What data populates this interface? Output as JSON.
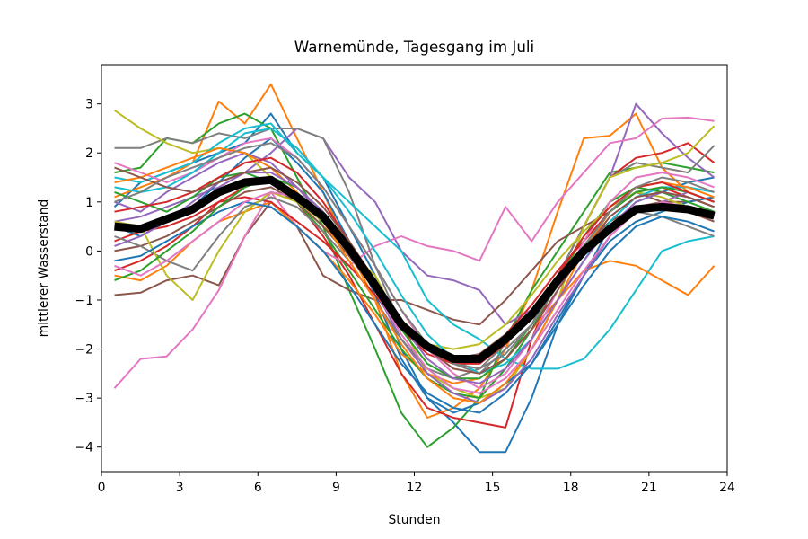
{
  "chart_data": {
    "type": "line",
    "title": "Warnemünde, Tagesgang im Juli",
    "xlabel": "Stunden",
    "ylabel": "mittlerer Wasserstand",
    "xlim": [
      0,
      24
    ],
    "ylim": [
      -4.5,
      3.8
    ],
    "xticks": [
      0,
      3,
      6,
      9,
      12,
      15,
      18,
      21,
      24
    ],
    "yticks": [
      -4,
      -3,
      -2,
      -1,
      0,
      1,
      2,
      3
    ],
    "grid": false,
    "legend": "none",
    "x": [
      0.5,
      1.5,
      2.5,
      3.5,
      4.5,
      5.5,
      6.5,
      7.5,
      8.5,
      9.5,
      10.5,
      11.5,
      12.5,
      13.5,
      14.5,
      15.5,
      16.5,
      17.5,
      18.5,
      19.5,
      20.5,
      21.5,
      22.5,
      23.5
    ],
    "palette": [
      "#1f77b4",
      "#ff7f0e",
      "#2ca02c",
      "#d62728",
      "#9467bd",
      "#8c564b",
      "#e377c2",
      "#7f7f7f",
      "#bcbd22",
      "#17becf"
    ],
    "mean_series": {
      "color": "#000000",
      "values": [
        0.5,
        0.45,
        0.65,
        0.85,
        1.2,
        1.4,
        1.45,
        1.1,
        0.7,
        0.05,
        -0.7,
        -1.5,
        -1.95,
        -2.2,
        -2.2,
        -1.8,
        -1.3,
        -0.6,
        0.0,
        0.45,
        0.85,
        0.9,
        0.85,
        0.72
      ]
    },
    "series": [
      {
        "color": "#1f77b4",
        "values": [
          0.9,
          1.4,
          1.6,
          1.8,
          2.0,
          2.2,
          2.8,
          2.0,
          1.5,
          0.5,
          -0.5,
          -2.0,
          -3.0,
          -3.5,
          -4.1,
          -4.1,
          -3.0,
          -1.5,
          -0.5,
          0.5,
          1.0,
          1.2,
          1.4,
          1.5
        ]
      },
      {
        "color": "#ff7f0e",
        "values": [
          1.1,
          1.3,
          1.5,
          1.8,
          3.05,
          2.6,
          3.4,
          2.3,
          1.2,
          0.0,
          -1.0,
          -2.5,
          -3.4,
          -3.2,
          -2.8,
          -2.0,
          -0.8,
          0.8,
          2.3,
          2.35,
          2.8,
          1.7,
          1.2,
          1.0
        ]
      },
      {
        "color": "#2ca02c",
        "values": [
          1.6,
          1.7,
          2.3,
          2.2,
          2.6,
          2.8,
          2.5,
          1.5,
          0.5,
          -0.8,
          -2.0,
          -3.3,
          -4.0,
          -3.6,
          -3.0,
          -1.8,
          -0.8,
          0.0,
          0.8,
          1.6,
          1.7,
          1.8,
          1.7,
          1.6
        ]
      },
      {
        "color": "#d62728",
        "values": [
          -0.4,
          -0.2,
          0.1,
          0.5,
          1.0,
          1.3,
          1.5,
          1.0,
          0.3,
          -0.5,
          -1.5,
          -2.5,
          -3.2,
          -3.4,
          -3.5,
          -3.6,
          -1.8,
          -0.5,
          0.5,
          1.5,
          1.9,
          2.0,
          2.2,
          1.8
        ]
      },
      {
        "color": "#9467bd",
        "values": [
          0.6,
          0.7,
          0.9,
          1.1,
          1.3,
          1.6,
          2.0,
          2.5,
          2.3,
          1.5,
          1.0,
          0.0,
          -0.5,
          -0.6,
          -0.8,
          -1.5,
          -1.2,
          -0.5,
          0.5,
          1.5,
          3.0,
          2.4,
          1.9,
          1.5
        ]
      },
      {
        "color": "#8c564b",
        "values": [
          -0.9,
          -0.85,
          -0.6,
          -0.5,
          -0.7,
          0.3,
          1.0,
          0.5,
          -0.5,
          -0.8,
          -1.0,
          -1.0,
          -1.2,
          -1.4,
          -1.5,
          -1.0,
          -0.4,
          0.2,
          0.5,
          0.8,
          1.2,
          1.0,
          1.0,
          1.1
        ]
      },
      {
        "color": "#e377c2",
        "values": [
          -2.8,
          -2.2,
          -2.15,
          -1.6,
          -0.8,
          0.3,
          1.2,
          0.5,
          0.0,
          -0.3,
          0.1,
          0.3,
          0.1,
          0.0,
          -0.2,
          0.9,
          0.2,
          1.0,
          1.6,
          2.2,
          2.3,
          2.7,
          2.72,
          2.65
        ]
      },
      {
        "color": "#7f7f7f",
        "values": [
          2.1,
          2.1,
          2.3,
          2.2,
          2.4,
          2.3,
          2.5,
          2.5,
          2.3,
          1.2,
          -0.3,
          -1.5,
          -2.0,
          -2.3,
          -2.5,
          -2.0,
          -1.5,
          -0.5,
          0.5,
          1.5,
          1.8,
          1.7,
          1.6,
          2.15
        ]
      },
      {
        "color": "#bcbd22",
        "values": [
          2.87,
          2.5,
          2.2,
          2.0,
          2.1,
          2.0,
          1.5,
          1.0,
          0.5,
          0.0,
          -0.5,
          -1.5,
          -2.5,
          -2.8,
          -3.0,
          -2.8,
          -2.0,
          -1.0,
          0.5,
          1.5,
          1.7,
          1.8,
          2.0,
          2.55
        ]
      },
      {
        "color": "#17becf",
        "values": [
          1.5,
          1.4,
          1.6,
          1.8,
          2.2,
          2.5,
          2.6,
          2.0,
          1.5,
          1.0,
          0.5,
          0.0,
          -1.0,
          -1.5,
          -1.8,
          -2.2,
          -2.4,
          -2.4,
          -2.2,
          -1.6,
          -0.8,
          0.0,
          0.2,
          0.3
        ]
      },
      {
        "color": "#1f77b4",
        "values": [
          0.5,
          0.3,
          0.6,
          0.9,
          1.4,
          1.9,
          2.3,
          1.8,
          1.2,
          0.2,
          -0.9,
          -2.2,
          -3.0,
          -3.3,
          -3.1,
          -2.7,
          -2.3,
          -1.4,
          -0.5,
          0.2,
          0.6,
          0.8,
          1.0,
          1.1
        ]
      },
      {
        "color": "#ff7f0e",
        "values": [
          -0.5,
          -0.6,
          -0.3,
          0.2,
          0.6,
          0.8,
          1.0,
          0.5,
          0.0,
          -0.6,
          -1.3,
          -2.1,
          -2.5,
          -2.7,
          -2.6,
          -2.2,
          -1.6,
          -1.0,
          -0.4,
          -0.2,
          -0.3,
          -0.6,
          -0.9,
          -0.3
        ]
      },
      {
        "color": "#2ca02c",
        "values": [
          1.2,
          1.0,
          0.8,
          1.1,
          1.5,
          1.6,
          1.4,
          1.0,
          0.4,
          -0.4,
          -1.2,
          -2.0,
          -2.6,
          -2.9,
          -3.0,
          -2.4,
          -1.6,
          -0.6,
          0.3,
          1.0,
          1.3,
          1.2,
          1.0,
          0.8
        ]
      },
      {
        "color": "#d62728",
        "values": [
          0.2,
          0.4,
          0.5,
          0.7,
          1.0,
          1.1,
          1.0,
          0.6,
          0.2,
          -0.3,
          -0.9,
          -1.6,
          -2.1,
          -2.3,
          -2.2,
          -1.7,
          -1.1,
          -0.4,
          0.2,
          0.8,
          1.2,
          1.3,
          1.1,
          0.9
        ]
      },
      {
        "color": "#9467bd",
        "values": [
          1.0,
          0.8,
          1.2,
          1.5,
          1.8,
          2.0,
          1.8,
          1.3,
          0.7,
          0.0,
          -0.8,
          -1.8,
          -2.5,
          -2.9,
          -3.1,
          -2.8,
          -2.2,
          -1.3,
          -0.5,
          0.3,
          0.8,
          1.0,
          1.2,
          1.0
        ]
      },
      {
        "color": "#8c564b",
        "values": [
          0.0,
          0.1,
          0.3,
          0.6,
          0.9,
          1.2,
          1.3,
          1.0,
          0.5,
          -0.1,
          -0.8,
          -1.5,
          -2.0,
          -2.2,
          -2.1,
          -1.7,
          -1.2,
          -0.5,
          0.1,
          0.6,
          0.9,
          1.0,
          0.8,
          0.6
        ]
      },
      {
        "color": "#e377c2",
        "values": [
          1.8,
          1.6,
          1.4,
          1.6,
          1.9,
          2.2,
          2.3,
          1.9,
          1.3,
          0.5,
          -0.3,
          -1.2,
          -2.0,
          -2.5,
          -2.8,
          -2.5,
          -1.8,
          -0.8,
          0.2,
          1.0,
          1.5,
          1.6,
          1.5,
          1.3
        ]
      },
      {
        "color": "#7f7f7f",
        "values": [
          0.3,
          0.1,
          -0.2,
          -0.4,
          0.3,
          0.9,
          1.1,
          0.9,
          0.4,
          -0.2,
          -1.0,
          -1.8,
          -2.4,
          -2.6,
          -2.4,
          -1.9,
          -1.3,
          -0.6,
          0.0,
          0.5,
          0.8,
          0.7,
          0.5,
          0.3
        ]
      },
      {
        "color": "#bcbd22",
        "values": [
          0.6,
          0.5,
          -0.5,
          -1.0,
          0.0,
          0.8,
          1.2,
          1.0,
          0.6,
          0.0,
          -0.7,
          -1.4,
          -1.9,
          -2.0,
          -1.9,
          -1.5,
          -0.9,
          -0.2,
          0.4,
          0.9,
          1.2,
          1.1,
          0.9,
          0.7
        ]
      },
      {
        "color": "#17becf",
        "values": [
          1.3,
          1.2,
          1.3,
          1.6,
          2.0,
          2.4,
          2.5,
          2.1,
          1.5,
          0.8,
          0.0,
          -0.9,
          -1.7,
          -2.2,
          -2.5,
          -2.3,
          -1.8,
          -1.0,
          -0.2,
          0.6,
          1.1,
          1.3,
          1.3,
          1.2
        ]
      },
      {
        "color": "#1f77b4",
        "values": [
          -0.2,
          -0.1,
          0.2,
          0.5,
          0.8,
          1.0,
          0.9,
          0.5,
          0.0,
          -0.7,
          -1.5,
          -2.3,
          -2.9,
          -3.2,
          -3.3,
          -2.9,
          -2.3,
          -1.5,
          -0.7,
          0.0,
          0.5,
          0.7,
          0.6,
          0.4
        ]
      },
      {
        "color": "#ff7f0e",
        "values": [
          1.4,
          1.5,
          1.7,
          1.9,
          2.1,
          2.0,
          1.7,
          1.2,
          0.6,
          -0.2,
          -1.0,
          -1.9,
          -2.6,
          -3.0,
          -3.1,
          -2.7,
          -2.0,
          -1.0,
          0.0,
          0.8,
          1.3,
          1.4,
          1.3,
          1.1
        ]
      },
      {
        "color": "#2ca02c",
        "values": [
          -0.6,
          -0.4,
          0.0,
          0.4,
          0.9,
          1.3,
          1.5,
          1.3,
          0.8,
          0.1,
          -0.7,
          -1.6,
          -2.3,
          -2.6,
          -2.6,
          -2.2,
          -1.5,
          -0.7,
          0.1,
          0.8,
          1.2,
          1.3,
          1.2,
          1.0
        ]
      },
      {
        "color": "#d62728",
        "values": [
          0.8,
          0.9,
          1.0,
          1.2,
          1.5,
          1.8,
          1.9,
          1.6,
          1.0,
          0.2,
          -0.6,
          -1.4,
          -2.0,
          -2.3,
          -2.3,
          -1.9,
          -1.3,
          -0.5,
          0.3,
          0.9,
          1.3,
          1.4,
          1.2,
          1.0
        ]
      },
      {
        "color": "#9467bd",
        "values": [
          0.1,
          0.3,
          0.6,
          1.0,
          1.4,
          1.6,
          1.6,
          1.3,
          0.8,
          0.1,
          -0.7,
          -1.5,
          -2.2,
          -2.6,
          -2.7,
          -2.4,
          -1.8,
          -1.0,
          -0.2,
          0.5,
          1.0,
          1.2,
          1.1,
          0.9
        ]
      },
      {
        "color": "#8c564b",
        "values": [
          1.7,
          1.5,
          1.3,
          1.2,
          1.4,
          1.6,
          1.7,
          1.4,
          0.9,
          0.2,
          -0.6,
          -1.4,
          -2.0,
          -2.4,
          -2.5,
          -2.2,
          -1.6,
          -0.8,
          0.0,
          0.7,
          1.1,
          1.2,
          1.1,
          0.9
        ]
      },
      {
        "color": "#e377c2",
        "values": [
          -0.3,
          -0.5,
          -0.2,
          0.2,
          0.6,
          1.0,
          1.2,
          1.1,
          0.7,
          0.0,
          -0.8,
          -1.7,
          -2.4,
          -2.8,
          -2.9,
          -2.6,
          -2.0,
          -1.2,
          -0.4,
          0.3,
          0.8,
          1.0,
          0.9,
          0.7
        ]
      },
      {
        "color": "#7f7f7f",
        "values": [
          1.0,
          1.2,
          1.5,
          1.7,
          1.9,
          2.1,
          2.2,
          1.9,
          1.3,
          0.5,
          -0.3,
          -1.2,
          -1.9,
          -2.3,
          -2.4,
          -2.1,
          -1.5,
          -0.7,
          0.1,
          0.8,
          1.3,
          1.5,
          1.4,
          1.2
        ]
      }
    ]
  }
}
